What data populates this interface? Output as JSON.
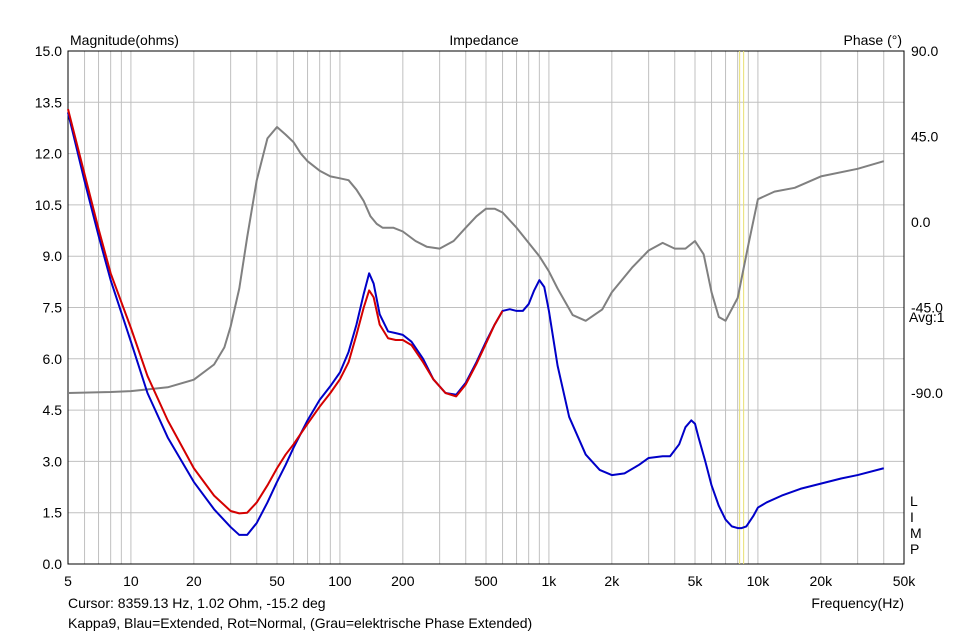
{
  "chart_data": {
    "type": "line",
    "title": "Impedance",
    "ylabel": "Magnitude(ohms)",
    "ylabel_right": "Phase (°)",
    "xlabel": "Frequency(Hz)",
    "x_scale": "log",
    "xlim": [
      5,
      50000
    ],
    "ylim": [
      0,
      15
    ],
    "ylim_right": [
      -180,
      90
    ],
    "grid": true,
    "y_ticks": [
      "15.0",
      "13.5",
      "12.0",
      "10.5",
      "9.0",
      "7.5",
      "6.0",
      "4.5",
      "3.0",
      "1.5",
      "0.0"
    ],
    "y_tick_values": [
      15,
      13.5,
      12,
      10.5,
      9,
      7.5,
      6,
      4.5,
      3,
      1.5,
      0
    ],
    "y_right_ticks": [
      "90.0",
      "45.0",
      "0.0",
      "-45.0",
      "-90.0"
    ],
    "y_right_tick_values": [
      90,
      45,
      0,
      -45,
      -90
    ],
    "x_ticks": [
      "5",
      "10",
      "20",
      "50",
      "100",
      "200",
      "500",
      "1k",
      "2k",
      "5k",
      "10k",
      "20k",
      "50k"
    ],
    "x_tick_values": [
      5,
      10,
      20,
      50,
      100,
      200,
      500,
      1000,
      2000,
      5000,
      10000,
      20000,
      50000
    ],
    "avg_label": "Avg:1",
    "side_letters": [
      "L",
      "I",
      "M",
      "P"
    ],
    "cursor_hz": 8359.13,
    "cursor_text": "Cursor: 8359.13 Hz, 1.02 Ohm, -15.2 deg",
    "caption": "Kappa9, Blau=Extended, Rot=Normal, (Grau=elektrische Phase Extended)",
    "colors": {
      "blue": "#0000c8",
      "red": "#d40000",
      "gray": "#808080",
      "cursor": "#e8e070",
      "grid": "#c0c0c0"
    },
    "series": [
      {
        "color_key": "blue",
        "axis": "left",
        "x": [
          5,
          6,
          7,
          8,
          10,
          12,
          15,
          20,
          25,
          30,
          33,
          36,
          40,
          45,
          50,
          55,
          60,
          70,
          80,
          90,
          100,
          110,
          120,
          130,
          138,
          145,
          155,
          170,
          185,
          200,
          220,
          250,
          280,
          320,
          360,
          400,
          450,
          500,
          550,
          600,
          650,
          700,
          750,
          800,
          850,
          900,
          950,
          1000,
          1100,
          1250,
          1500,
          1750,
          2000,
          2300,
          2700,
          3000,
          3500,
          3800,
          4200,
          4500,
          4800,
          5000,
          5200,
          5600,
          6000,
          6500,
          7000,
          7500,
          8000,
          8359,
          8800,
          9500,
          10000,
          11000,
          13000,
          16000,
          20000,
          25000,
          30000,
          40000
        ],
        "y": [
          13.2,
          11.2,
          9.6,
          8.3,
          6.5,
          5.0,
          3.7,
          2.4,
          1.6,
          1.08,
          0.85,
          0.85,
          1.2,
          1.8,
          2.4,
          2.9,
          3.4,
          4.2,
          4.8,
          5.2,
          5.6,
          6.2,
          7.0,
          7.9,
          8.5,
          8.2,
          7.3,
          6.8,
          6.75,
          6.7,
          6.5,
          6.0,
          5.4,
          5.0,
          4.95,
          5.3,
          5.9,
          6.5,
          7.0,
          7.4,
          7.45,
          7.4,
          7.4,
          7.6,
          8.0,
          8.3,
          8.1,
          7.4,
          5.8,
          4.3,
          3.2,
          2.75,
          2.6,
          2.65,
          2.9,
          3.1,
          3.15,
          3.15,
          3.5,
          4.0,
          4.2,
          4.1,
          3.7,
          3.0,
          2.3,
          1.7,
          1.3,
          1.1,
          1.05,
          1.05,
          1.1,
          1.4,
          1.65,
          1.8,
          2.0,
          2.2,
          2.35,
          2.5,
          2.6,
          2.8
        ]
      },
      {
        "color_key": "red",
        "axis": "left",
        "x": [
          5,
          6,
          7,
          8,
          10,
          12,
          15,
          20,
          25,
          30,
          33,
          36,
          40,
          45,
          50,
          55,
          60,
          70,
          80,
          90,
          100,
          110,
          120,
          130,
          138,
          145,
          155,
          170,
          185,
          200,
          220,
          250,
          280,
          320,
          360,
          400,
          450,
          500,
          550,
          600
        ],
        "y": [
          13.3,
          11.4,
          9.8,
          8.5,
          6.9,
          5.5,
          4.2,
          2.8,
          2.0,
          1.55,
          1.48,
          1.5,
          1.8,
          2.3,
          2.8,
          3.2,
          3.5,
          4.1,
          4.6,
          5.0,
          5.4,
          5.9,
          6.7,
          7.5,
          8.0,
          7.8,
          7.0,
          6.6,
          6.55,
          6.55,
          6.4,
          5.9,
          5.4,
          5.0,
          4.9,
          5.25,
          5.85,
          6.45,
          7.0,
          7.4
        ]
      },
      {
        "color_key": "gray",
        "axis": "right",
        "x": [
          5,
          8,
          10,
          15,
          20,
          25,
          28,
          30,
          33,
          36,
          40,
          45,
          50,
          55,
          60,
          65,
          70,
          80,
          90,
          100,
          110,
          120,
          130,
          140,
          150,
          160,
          170,
          180,
          200,
          230,
          260,
          300,
          350,
          400,
          450,
          500,
          550,
          600,
          700,
          800,
          900,
          1000,
          1100,
          1300,
          1500,
          1800,
          2000,
          2500,
          3000,
          3500,
          4000,
          4500,
          5000,
          5500,
          6000,
          6500,
          7000,
          8000,
          9000,
          10000,
          12000,
          15000,
          20000,
          30000,
          40000
        ],
        "y": [
          -90,
          -89.5,
          -89,
          -87,
          -83,
          -75,
          -66,
          -55,
          -35,
          -8,
          22,
          44,
          50,
          46,
          42,
          36,
          32,
          27,
          24,
          23,
          22,
          17,
          11,
          3,
          -1,
          -3,
          -3,
          -3,
          -5,
          -10,
          -13,
          -14,
          -10,
          -3,
          3,
          7,
          7,
          5,
          -3,
          -11,
          -18,
          -26,
          -35,
          -49,
          -52,
          -46,
          -37,
          -24,
          -15,
          -11,
          -14,
          -14,
          -10,
          -17,
          -37,
          -50,
          -52,
          -40,
          -12,
          12,
          16,
          18,
          24,
          28,
          32
        ]
      }
    ]
  }
}
